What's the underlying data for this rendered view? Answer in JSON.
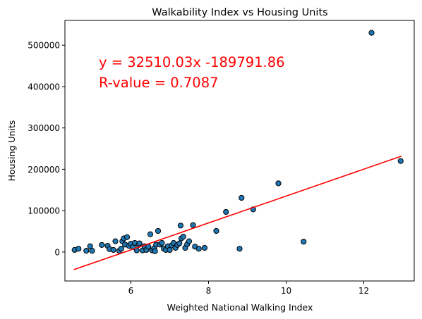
{
  "chart_data": {
    "type": "scatter",
    "title": "Walkability Index vs Housing Units",
    "xlabel": "Weighted National Walking Index",
    "ylabel": "Housing Units",
    "xlim": [
      4.3,
      13.3
    ],
    "ylim": [
      -70000,
      560000
    ],
    "xticks": [
      6,
      8,
      10,
      12
    ],
    "yticks": [
      0,
      100000,
      200000,
      300000,
      400000,
      500000
    ],
    "xtick_labels": [
      "6",
      "8",
      "10",
      "12"
    ],
    "ytick_labels": [
      "0",
      "100000",
      "200000",
      "300000",
      "400000",
      "500000"
    ],
    "grid": false,
    "point_color": "#1f77b4",
    "line_color": "#ff0000",
    "regression": {
      "slope": 32510.03,
      "intercept": -189791.86,
      "x_range": [
        4.53,
        12.97
      ],
      "equation_text": "y = 32510.03x -189791.86",
      "r_text": "R-value = 0.7087"
    },
    "points": [
      {
        "x": 4.55,
        "y": 5000
      },
      {
        "x": 4.65,
        "y": 8000
      },
      {
        "x": 4.85,
        "y": 3000
      },
      {
        "x": 4.95,
        "y": 14000
      },
      {
        "x": 5.0,
        "y": 3000
      },
      {
        "x": 5.25,
        "y": 17000
      },
      {
        "x": 5.4,
        "y": 15000
      },
      {
        "x": 5.45,
        "y": 7000
      },
      {
        "x": 5.55,
        "y": 5000
      },
      {
        "x": 5.6,
        "y": 26000
      },
      {
        "x": 5.7,
        "y": 3000
      },
      {
        "x": 5.75,
        "y": 8000
      },
      {
        "x": 5.78,
        "y": 26000
      },
      {
        "x": 5.82,
        "y": 33000
      },
      {
        "x": 5.85,
        "y": 18000
      },
      {
        "x": 5.9,
        "y": 36000
      },
      {
        "x": 5.95,
        "y": 15000
      },
      {
        "x": 6.0,
        "y": 20000
      },
      {
        "x": 6.05,
        "y": 12000
      },
      {
        "x": 6.1,
        "y": 22000
      },
      {
        "x": 6.15,
        "y": 4000
      },
      {
        "x": 6.2,
        "y": 17000
      },
      {
        "x": 6.22,
        "y": 21000
      },
      {
        "x": 6.3,
        "y": 4000
      },
      {
        "x": 6.35,
        "y": 14000
      },
      {
        "x": 6.4,
        "y": 5000
      },
      {
        "x": 6.45,
        "y": 13000
      },
      {
        "x": 6.5,
        "y": 43000
      },
      {
        "x": 6.55,
        "y": 4000
      },
      {
        "x": 6.6,
        "y": 9000
      },
      {
        "x": 6.62,
        "y": 2000
      },
      {
        "x": 6.65,
        "y": 18000
      },
      {
        "x": 6.7,
        "y": 51000
      },
      {
        "x": 6.75,
        "y": 18000
      },
      {
        "x": 6.8,
        "y": 22000
      },
      {
        "x": 6.85,
        "y": 8000
      },
      {
        "x": 6.9,
        "y": 5000
      },
      {
        "x": 6.95,
        "y": 14000
      },
      {
        "x": 7.0,
        "y": 5000
      },
      {
        "x": 7.05,
        "y": 16000
      },
      {
        "x": 7.1,
        "y": 22000
      },
      {
        "x": 7.15,
        "y": 10000
      },
      {
        "x": 7.2,
        "y": 17000
      },
      {
        "x": 7.25,
        "y": 21000
      },
      {
        "x": 7.28,
        "y": 64000
      },
      {
        "x": 7.3,
        "y": 33000
      },
      {
        "x": 7.35,
        "y": 37000
      },
      {
        "x": 7.4,
        "y": 10000
      },
      {
        "x": 7.45,
        "y": 19000
      },
      {
        "x": 7.5,
        "y": 26000
      },
      {
        "x": 7.6,
        "y": 65000
      },
      {
        "x": 7.65,
        "y": 13000
      },
      {
        "x": 7.75,
        "y": 8000
      },
      {
        "x": 7.9,
        "y": 10000
      },
      {
        "x": 8.2,
        "y": 51000
      },
      {
        "x": 8.45,
        "y": 97000
      },
      {
        "x": 8.8,
        "y": 8000
      },
      {
        "x": 8.85,
        "y": 131000
      },
      {
        "x": 9.15,
        "y": 103000
      },
      {
        "x": 9.8,
        "y": 166000
      },
      {
        "x": 10.45,
        "y": 25000
      },
      {
        "x": 12.2,
        "y": 530000
      },
      {
        "x": 12.95,
        "y": 220000
      }
    ]
  }
}
